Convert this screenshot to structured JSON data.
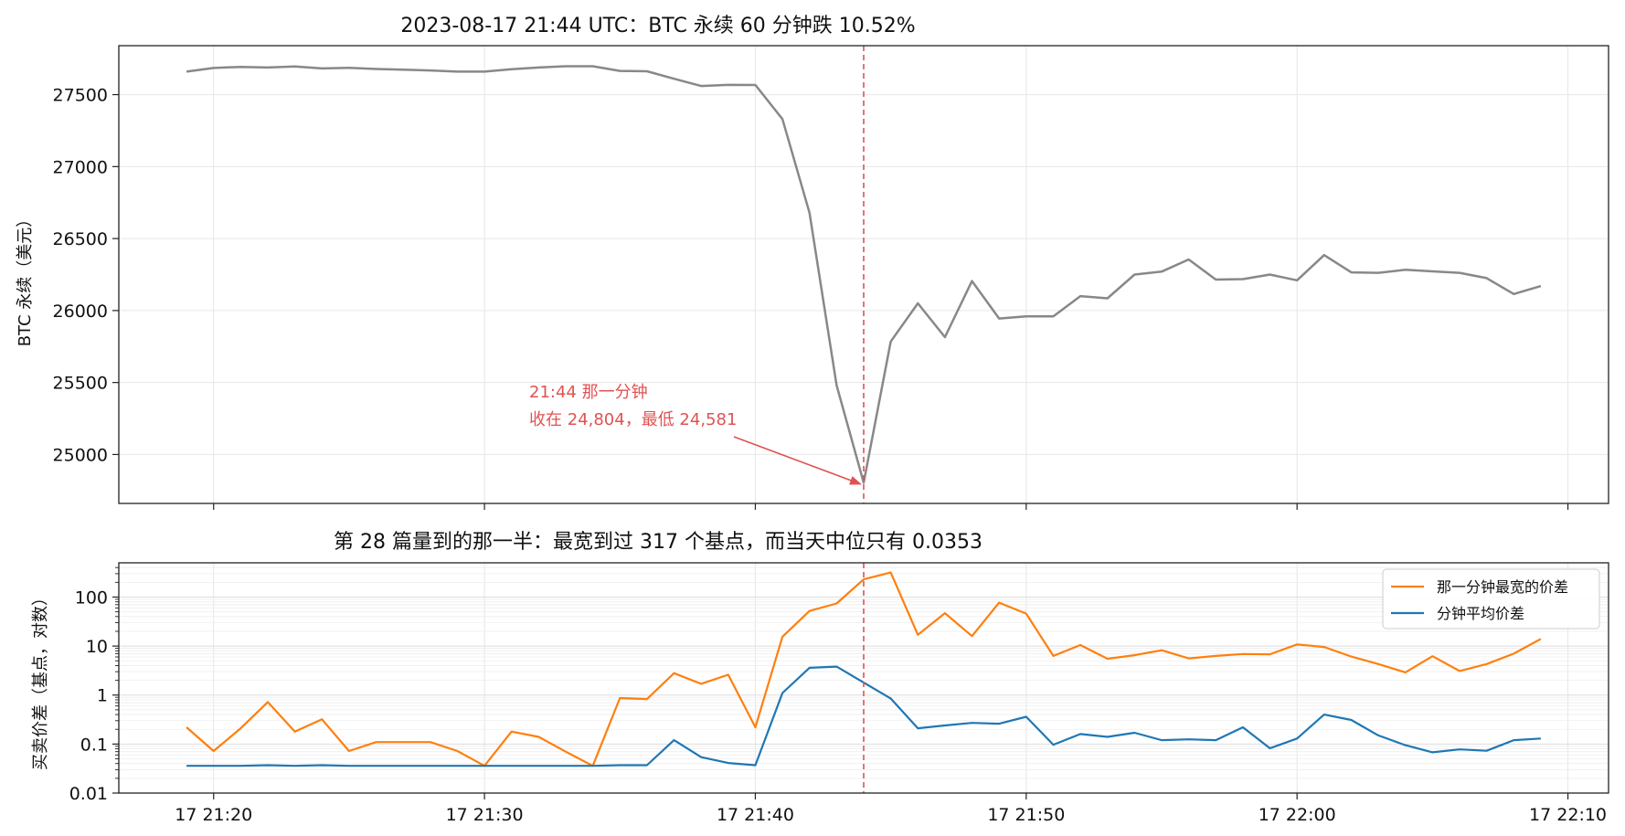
{
  "chart_data": [
    {
      "type": "line",
      "title": "2023-08-17 21:44 UTC：BTC 永续 60 分钟跌 10.52%",
      "xlabel": "",
      "ylabel": "BTC 永续（美元）",
      "xlim": [
        "2023-08-17 21:16:30",
        "2023-08-17 22:11:30"
      ],
      "ylim": [
        24660,
        27840
      ],
      "yticks": [
        25000,
        25500,
        26000,
        26500,
        27000,
        27500
      ],
      "grid": true,
      "series": [
        {
          "color": "#888888",
          "x_start": "2023-08-17 21:19",
          "x_step_minutes": 1,
          "values": [
            27660,
            27685,
            27693,
            27688,
            27696,
            27682,
            27686,
            27678,
            27673,
            27668,
            27660,
            27660,
            27677,
            27688,
            27697,
            27697,
            27665,
            27662,
            27610,
            27560,
            27568,
            27567,
            27330,
            26680,
            25480,
            24804,
            25785,
            26050,
            25815,
            26205,
            25945,
            25960,
            25960,
            26100,
            26085,
            26250,
            26270,
            26355,
            26215,
            26218,
            26250,
            26210,
            26385,
            26265,
            26262,
            26283,
            26272,
            26262,
            26225,
            26115,
            26170
          ]
        }
      ],
      "marker_line": {
        "x": "2023-08-17 21:44",
        "color": "#e05252"
      },
      "annotation": {
        "lines": [
          "21:44 那一分钟",
          "收在 24,804，最低 24,581"
        ],
        "target_x": "2023-08-17 21:44",
        "target_y": 24804,
        "color": "#e05252"
      }
    },
    {
      "type": "line",
      "title": "第 28 篇量到的那一半：最宽到过 317 个基点，而当天中位只有 0.0353",
      "xlabel": "",
      "ylabel": "买卖价差（基点，对数）",
      "yscale": "log",
      "ylim": [
        0.01,
        500
      ],
      "yticks": [
        0.01,
        0.1,
        1,
        10,
        100
      ],
      "ytick_labels": [
        "0.01",
        "0.1",
        "1",
        "10",
        "100"
      ],
      "xticks": [
        "2023-08-17 21:20",
        "2023-08-17 21:30",
        "2023-08-17 21:40",
        "2023-08-17 21:50",
        "2023-08-17 22:00",
        "2023-08-17 22:10"
      ],
      "xtick_labels": [
        "17 21:20",
        "17 21:30",
        "17 21:40",
        "17 21:50",
        "17 22:00",
        "17 22:10"
      ],
      "grid": true,
      "legend_position": "top-right",
      "series": [
        {
          "name": "那一分钟最宽的价差",
          "color": "#ff7f0e",
          "x_start": "2023-08-17 21:19",
          "x_step_minutes": 1,
          "values": [
            0.22,
            0.072,
            0.21,
            0.72,
            0.18,
            0.32,
            0.072,
            0.11,
            0.11,
            0.11,
            0.072,
            0.036,
            0.18,
            0.14,
            0.07,
            0.036,
            0.87,
            0.83,
            2.8,
            1.7,
            2.6,
            0.22,
            15.5,
            52,
            74,
            230,
            317,
            17,
            47,
            16,
            77,
            46,
            6.3,
            10.5,
            5.5,
            6.5,
            8.2,
            5.6,
            6.3,
            6.9,
            6.8,
            10.8,
            9.6,
            6.1,
            4.3,
            2.9,
            6.2,
            3.1,
            4.3,
            7.0,
            14
          ]
        },
        {
          "name": "分钟平均价差",
          "color": "#1f77b4",
          "x_start": "2023-08-17 21:19",
          "x_step_minutes": 1,
          "values": [
            0.036,
            0.036,
            0.036,
            0.037,
            0.036,
            0.037,
            0.036,
            0.036,
            0.036,
            0.036,
            0.036,
            0.036,
            0.036,
            0.036,
            0.036,
            0.036,
            0.037,
            0.037,
            0.12,
            0.054,
            0.041,
            0.037,
            1.1,
            3.6,
            3.8,
            1.8,
            0.85,
            0.21,
            0.24,
            0.27,
            0.26,
            0.36,
            0.097,
            0.16,
            0.14,
            0.17,
            0.12,
            0.125,
            0.12,
            0.22,
            0.082,
            0.13,
            0.4,
            0.31,
            0.15,
            0.095,
            0.068,
            0.078,
            0.073,
            0.12,
            0.13
          ]
        }
      ],
      "marker_line": {
        "x": "2023-08-17 21:44",
        "color": "#e05252"
      }
    }
  ]
}
